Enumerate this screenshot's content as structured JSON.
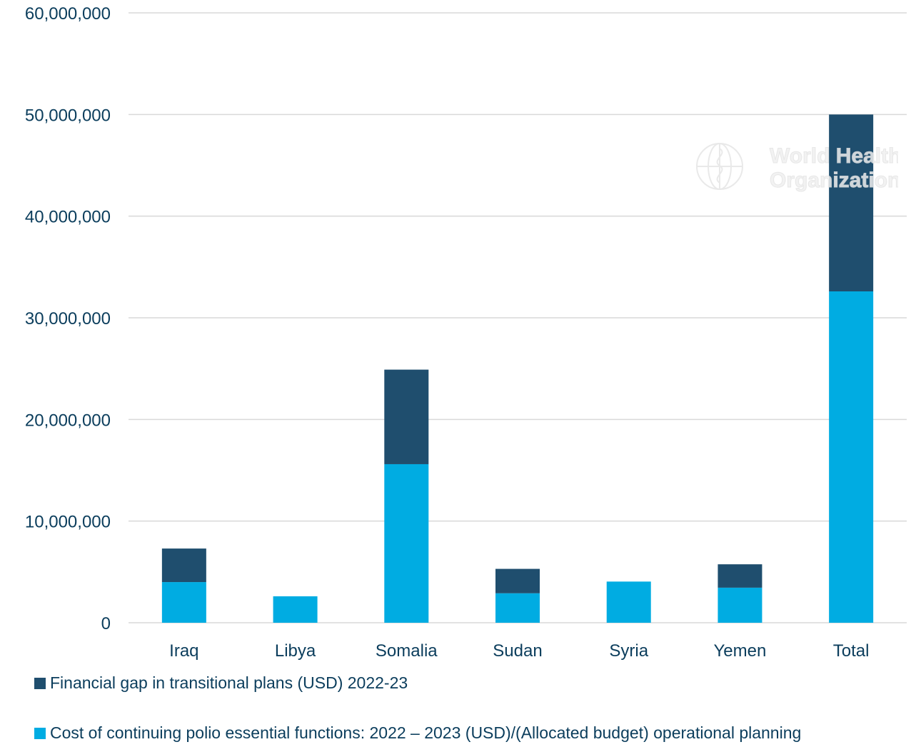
{
  "chart_data": {
    "type": "bar",
    "stacked": true,
    "categories": [
      "Iraq",
      "Libya",
      "Somalia",
      "Sudan",
      "Syria",
      "Yemen",
      "Total"
    ],
    "series": [
      {
        "name": "Cost of continuing polio essential functions: 2022 – 2023 (USD)/(Allocated budget) operational planning",
        "color": "#00ace2",
        "values": [
          4000000,
          2600000,
          15600000,
          2900000,
          4050000,
          3450000,
          32600000
        ]
      },
      {
        "name": "Financial gap in transitional plans (USD)  2022-23",
        "color": "#1f4e6e",
        "values": [
          3300000,
          0,
          9300000,
          2400000,
          0,
          2300000,
          17400000
        ]
      }
    ],
    "ylim": [
      0,
      60000000
    ],
    "yticks": [
      0,
      10000000,
      20000000,
      30000000,
      40000000,
      50000000,
      60000000
    ],
    "ytick_labels": [
      "0",
      "10,000,000",
      "20,000,000",
      "30,000,000",
      "40,000,000",
      "50,000,000",
      "60,000,000"
    ],
    "grid": true,
    "legend_position": "bottom",
    "title": "",
    "xlabel": "",
    "ylabel": ""
  },
  "legend": {
    "gap_label": "Financial gap in transitional plans (USD)  2022-23",
    "cost_label": "Cost of continuing polio essential functions: 2022 – 2023 (USD)/(Allocated budget) operational planning"
  },
  "watermark": {
    "line1": "World Health",
    "line2": "Organization",
    "icon": "who-emblem-icon"
  },
  "colors": {
    "axis_text": "#0b3d5c",
    "grid": "#d9d9d9",
    "cost": "#00ace2",
    "gap": "#1f4e6e"
  }
}
